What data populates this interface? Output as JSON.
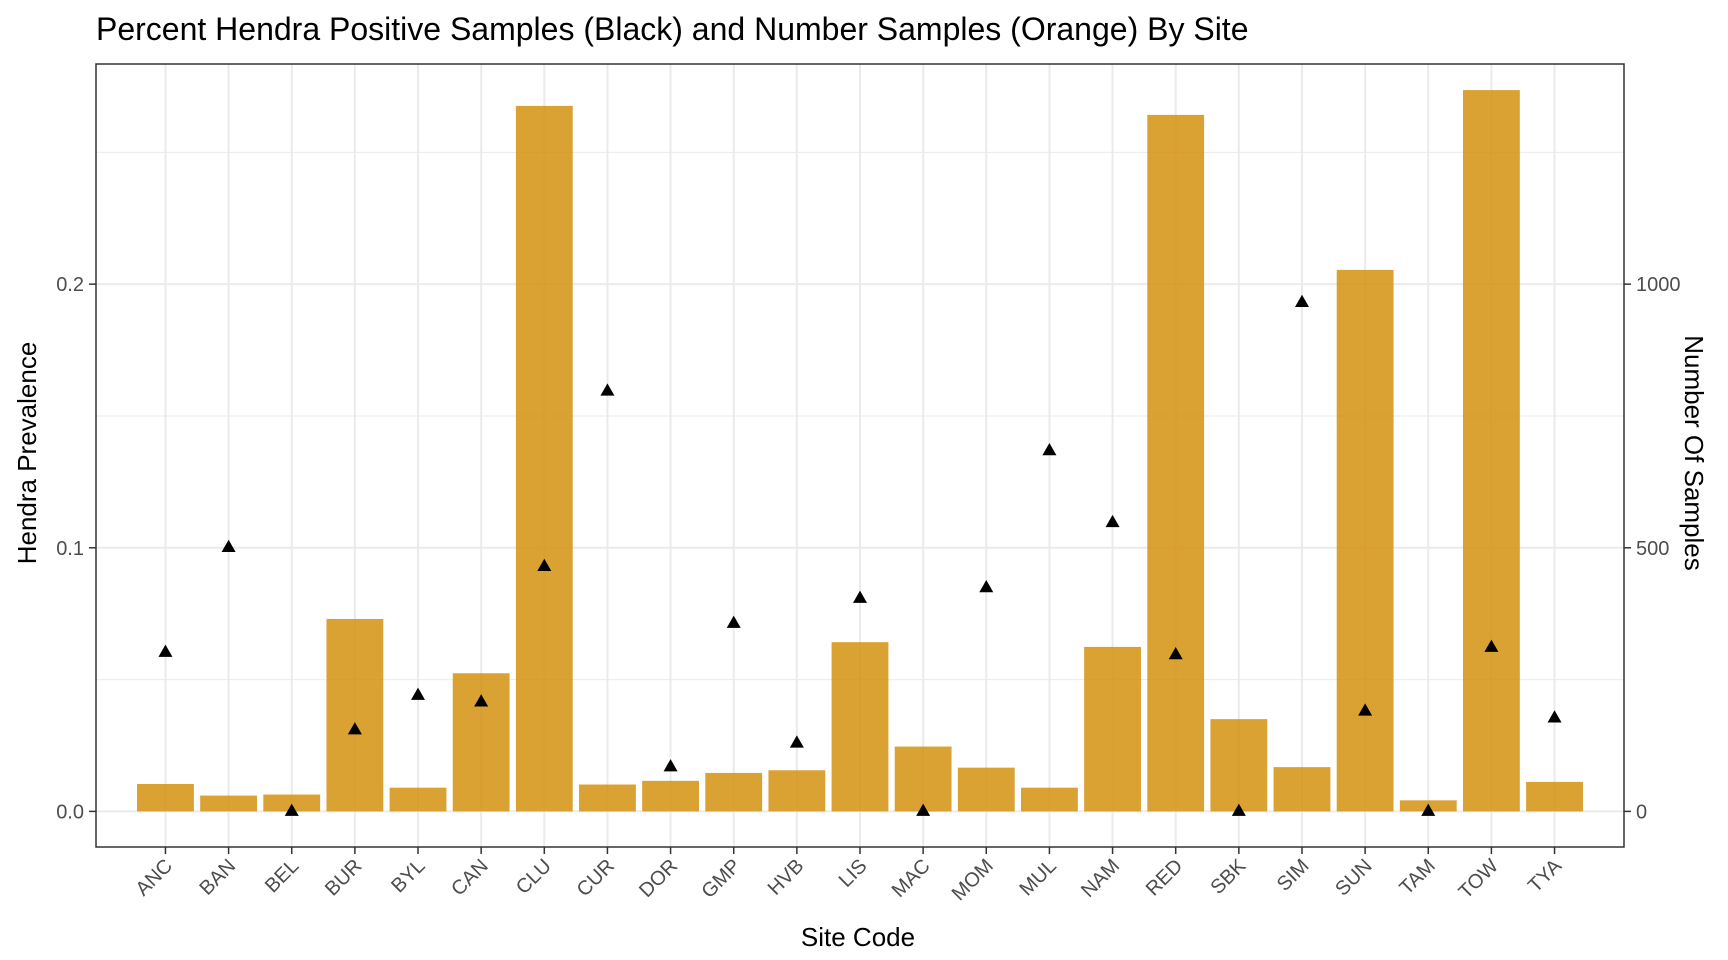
{
  "chart_data": {
    "type": "bar",
    "title": "Percent Hendra Positive Samples (Black) and Number Samples (Orange) By Site",
    "xlabel": "Site Code",
    "ylabel": "Hendra Prevalence",
    "y2label": "Number Of Samples",
    "categories": [
      "ANC",
      "BAN",
      "BEL",
      "BUR",
      "BYL",
      "CAN",
      "CLU",
      "CUR",
      "DOR",
      "GMP",
      "HVB",
      "LIS",
      "MAC",
      "MOM",
      "MUL",
      "NAM",
      "RED",
      "SBK",
      "SIM",
      "SUN",
      "TAM",
      "TOW",
      "TYA"
    ],
    "series": [
      {
        "type": "bar",
        "axis": "right",
        "color": "#d4900f",
        "values": [
          52,
          30,
          32,
          365,
          45,
          262,
          1338,
          51,
          58,
          73,
          78,
          321,
          123,
          83,
          45,
          312,
          1321,
          175,
          84,
          1027,
          21,
          1368,
          56
        ]
      },
      {
        "type": "scatter",
        "marker": "triangle",
        "axis": "left",
        "color": "#000000",
        "values": [
          0.0606,
          0.1004,
          0.0003,
          0.0312,
          0.0443,
          0.0418,
          0.0932,
          0.1597,
          0.0172,
          0.0716,
          0.0262,
          0.0811,
          0.0003,
          0.0851,
          0.1371,
          0.1098,
          0.0597,
          0.0003,
          0.1933,
          0.0383,
          0.0003,
          0.0625,
          0.0357
        ]
      }
    ],
    "ylim": [
      -0.0135,
      0.2835
    ],
    "y2lim": [
      -67.5,
      1417.5
    ],
    "yticks": [
      0.0,
      0.1,
      0.2
    ],
    "ytick_labels": [
      "0.0",
      "0.1",
      "0.2"
    ],
    "y2ticks": [
      0,
      500,
      1000
    ],
    "y2tick_labels": [
      "0",
      "500",
      "1000"
    ],
    "grid": true,
    "colors": {
      "bar": "#d4900f",
      "marker": "#000000",
      "grid": "#ebebeb",
      "panel_border": "#333333"
    }
  }
}
